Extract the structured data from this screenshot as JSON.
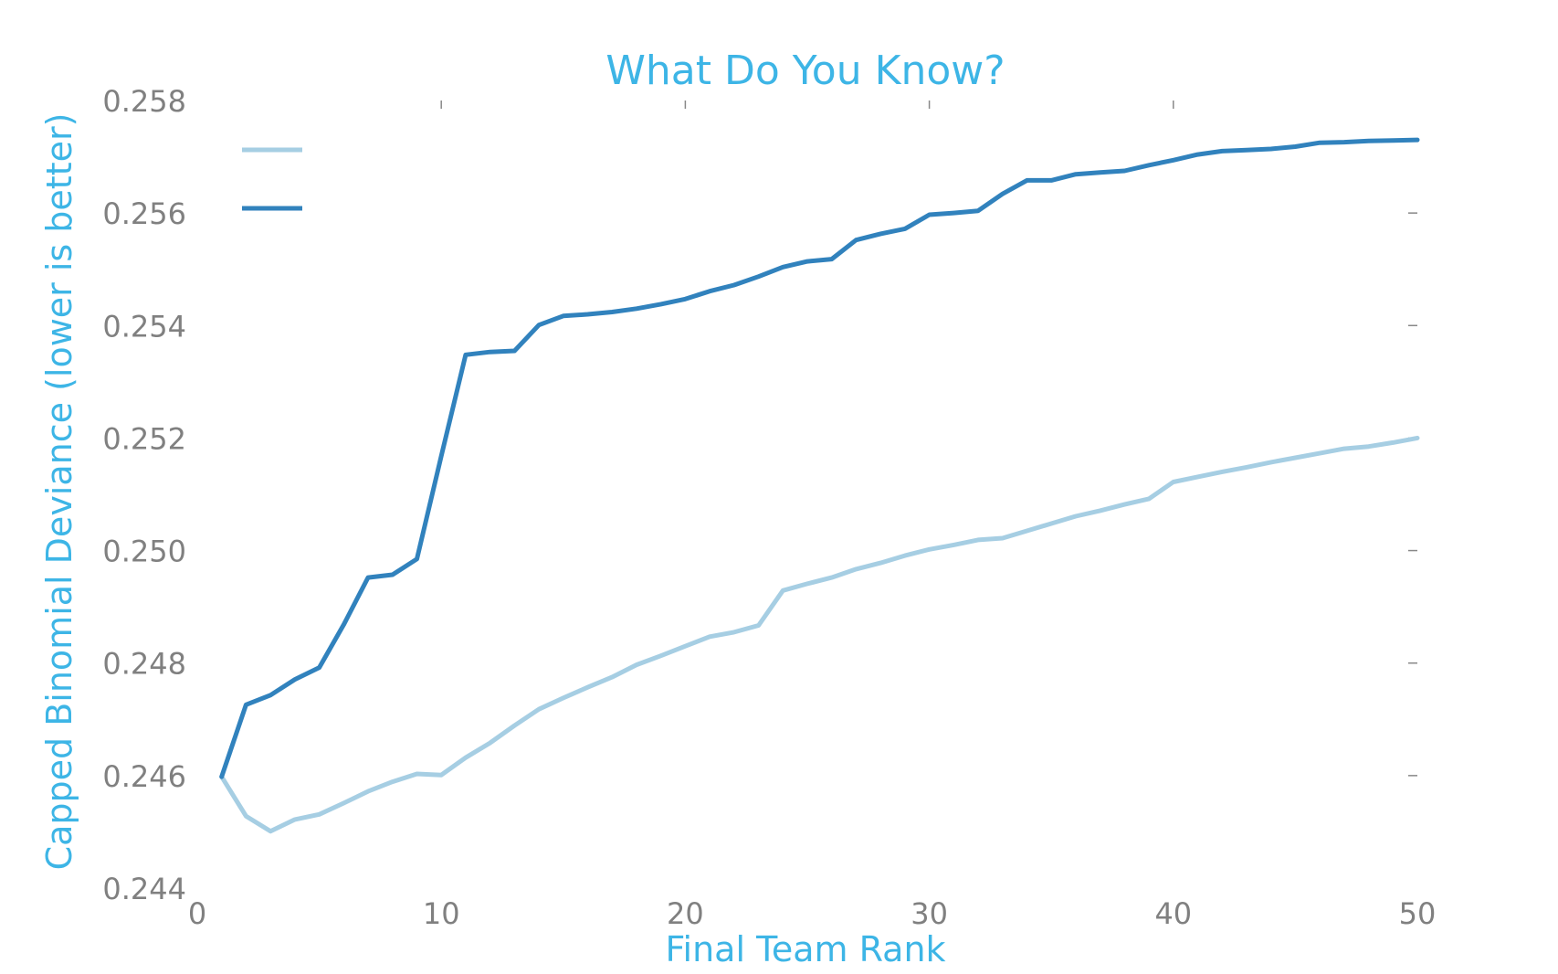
{
  "chart_data": {
    "type": "line",
    "title": "What Do You Know?",
    "xlabel": "Final Team Rank",
    "ylabel": "Capped Binomial Deviance (lower is better)",
    "xlim": [
      0,
      50
    ],
    "ylim": [
      0.244,
      0.258
    ],
    "xticks": [
      "0",
      "10",
      "20",
      "30",
      "40",
      "50"
    ],
    "xtick_values": [
      0,
      10,
      20,
      30,
      40,
      50
    ],
    "yticks": [
      "0.244",
      "0.246",
      "0.248",
      "0.250",
      "0.252",
      "0.254",
      "0.256",
      "0.258"
    ],
    "ytick_values": [
      0.244,
      0.246,
      0.248,
      0.25,
      0.252,
      0.254,
      0.256,
      0.258
    ],
    "grid": false,
    "legend": "top-left",
    "x": [
      1,
      2,
      3,
      4,
      5,
      6,
      7,
      8,
      9,
      10,
      11,
      12,
      13,
      14,
      15,
      16,
      17,
      18,
      19,
      20,
      21,
      22,
      23,
      24,
      25,
      26,
      27,
      28,
      29,
      30,
      31,
      32,
      33,
      34,
      35,
      36,
      37,
      38,
      39,
      40,
      41,
      42,
      43,
      44,
      45,
      46,
      47,
      48,
      49,
      50
    ],
    "series": [
      {
        "color": "#a6cee3",
        "values": [
          0.24598,
          0.24528,
          0.24501,
          0.24522,
          0.24531,
          0.24551,
          0.24572,
          0.24589,
          0.24603,
          0.24601,
          0.24632,
          0.24658,
          0.24689,
          0.24718,
          0.24738,
          0.24757,
          0.24775,
          0.24797,
          0.24813,
          0.2483,
          0.24847,
          0.24855,
          0.24867,
          0.24929,
          0.24941,
          0.24952,
          0.24967,
          0.24978,
          0.24991,
          0.25002,
          0.2501,
          0.25019,
          0.25022,
          0.25035,
          0.25048,
          0.25061,
          0.25071,
          0.25082,
          0.25092,
          0.25122,
          0.25131,
          0.2514,
          0.25148,
          0.25157,
          0.25165,
          0.25173,
          0.25181,
          0.25185,
          0.25192,
          0.252
        ]
      },
      {
        "color": "#3182bd",
        "values": [
          0.24598,
          0.24726,
          0.24743,
          0.24771,
          0.24792,
          0.24868,
          0.24952,
          0.24957,
          0.24985,
          0.25168,
          0.25348,
          0.25353,
          0.25355,
          0.25401,
          0.25417,
          0.2542,
          0.25424,
          0.2543,
          0.25438,
          0.25447,
          0.25461,
          0.25472,
          0.25487,
          0.25504,
          0.25514,
          0.25518,
          0.25552,
          0.25563,
          0.25572,
          0.25597,
          0.256,
          0.25604,
          0.25634,
          0.25658,
          0.25658,
          0.25669,
          0.25672,
          0.25675,
          0.25685,
          0.25694,
          0.25704,
          0.2571,
          0.25712,
          0.25714,
          0.25718,
          0.25725,
          0.25726,
          0.25728,
          0.25729,
          0.2573
        ]
      }
    ]
  },
  "colors": {
    "title": "#3db5e6",
    "axis_label": "#3db5e6",
    "tick_label": "#808080",
    "tick_mark": "#888888"
  }
}
